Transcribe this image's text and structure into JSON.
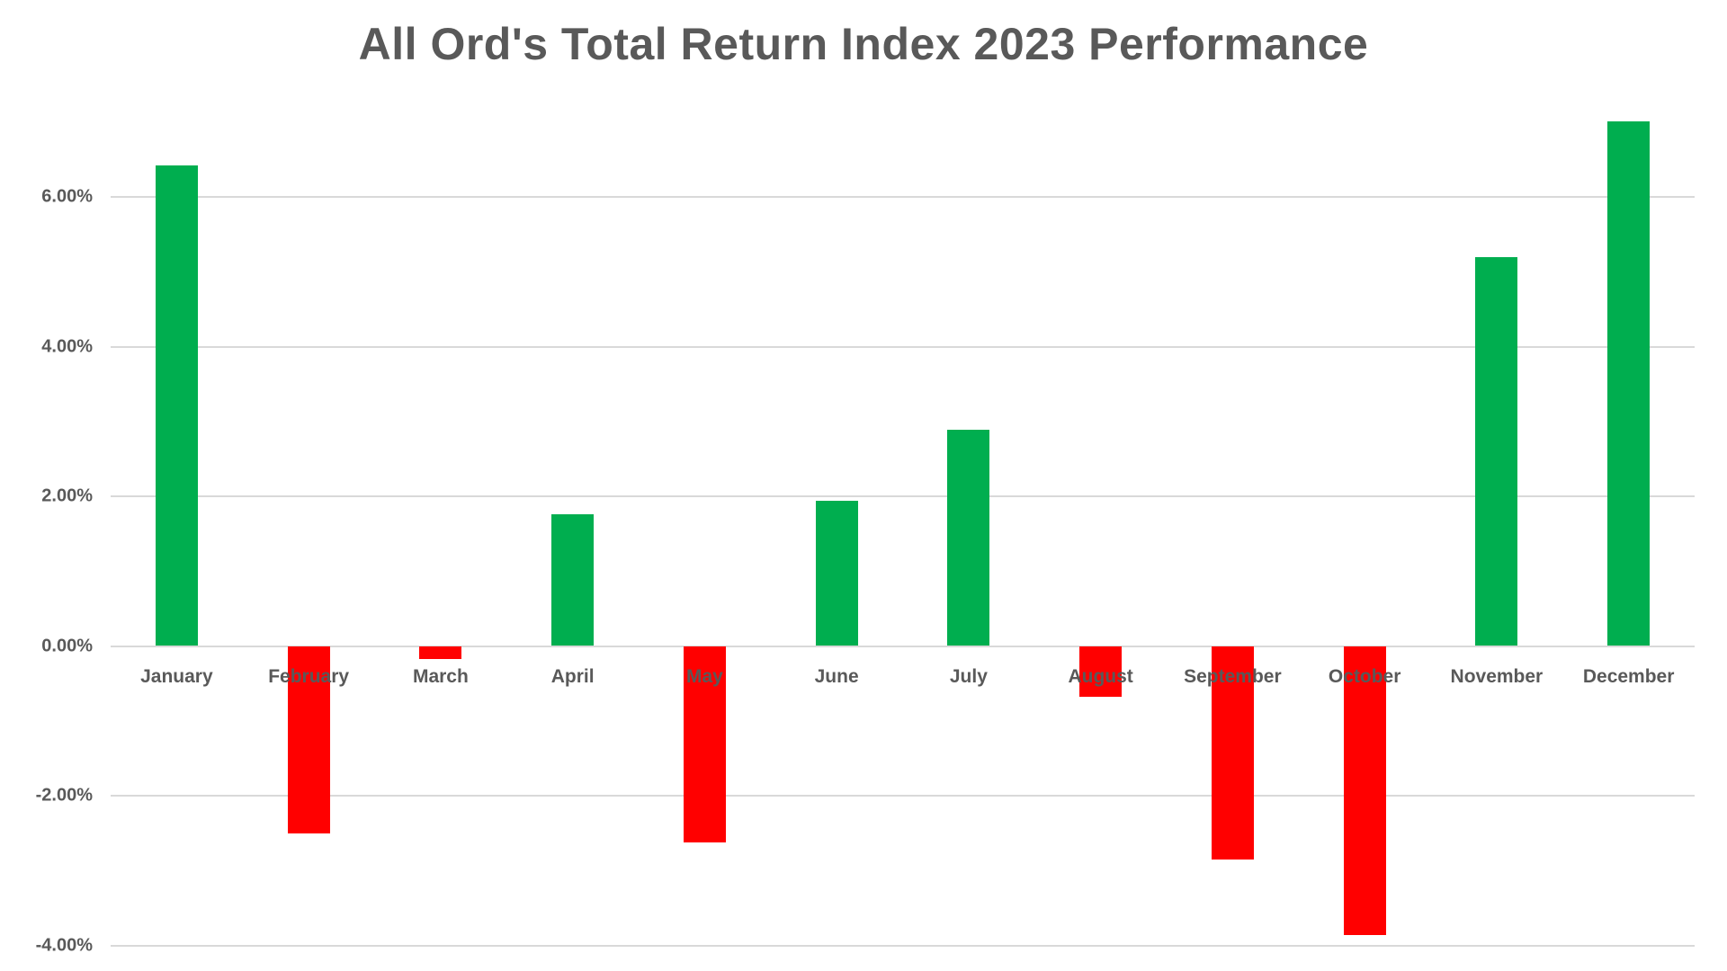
{
  "title": "All Ord's Total Return Index 2023 Performance",
  "colors": {
    "positive_bar": "#00AE4F",
    "negative_bar": "#FF0000",
    "gridline": "#D9D9D9",
    "zero_line": "#D9D9D9",
    "text": "#595959",
    "background": "#FFFFFF"
  },
  "chart_data": {
    "type": "bar",
    "title": "All Ord's Total Return Index 2023 Performance",
    "categories": [
      "January",
      "February",
      "March",
      "April",
      "May",
      "June",
      "July",
      "August",
      "September",
      "October",
      "November",
      "December"
    ],
    "values": [
      6.42,
      -2.5,
      -0.18,
      1.76,
      -2.63,
      1.94,
      2.89,
      -0.68,
      -2.85,
      -3.86,
      5.19,
      7.01
    ],
    "unit": "%",
    "xlabel": "",
    "ylabel": "",
    "ylim": [
      -4.3,
      7.3
    ],
    "y_axis_ticks": [
      {
        "value": 6,
        "label": "6.00%"
      },
      {
        "value": 4,
        "label": "4.00%"
      },
      {
        "value": 2,
        "label": "2.00%"
      },
      {
        "value": 0,
        "label": "0.00%"
      },
      {
        "value": -2,
        "label": "-2.00%"
      },
      {
        "value": -4,
        "label": "-4.00%"
      }
    ],
    "gridlines": "horizontal",
    "legend": "none",
    "color_rule": "green bars for positive months, red bars for negative months",
    "labels_over_bars": true
  }
}
